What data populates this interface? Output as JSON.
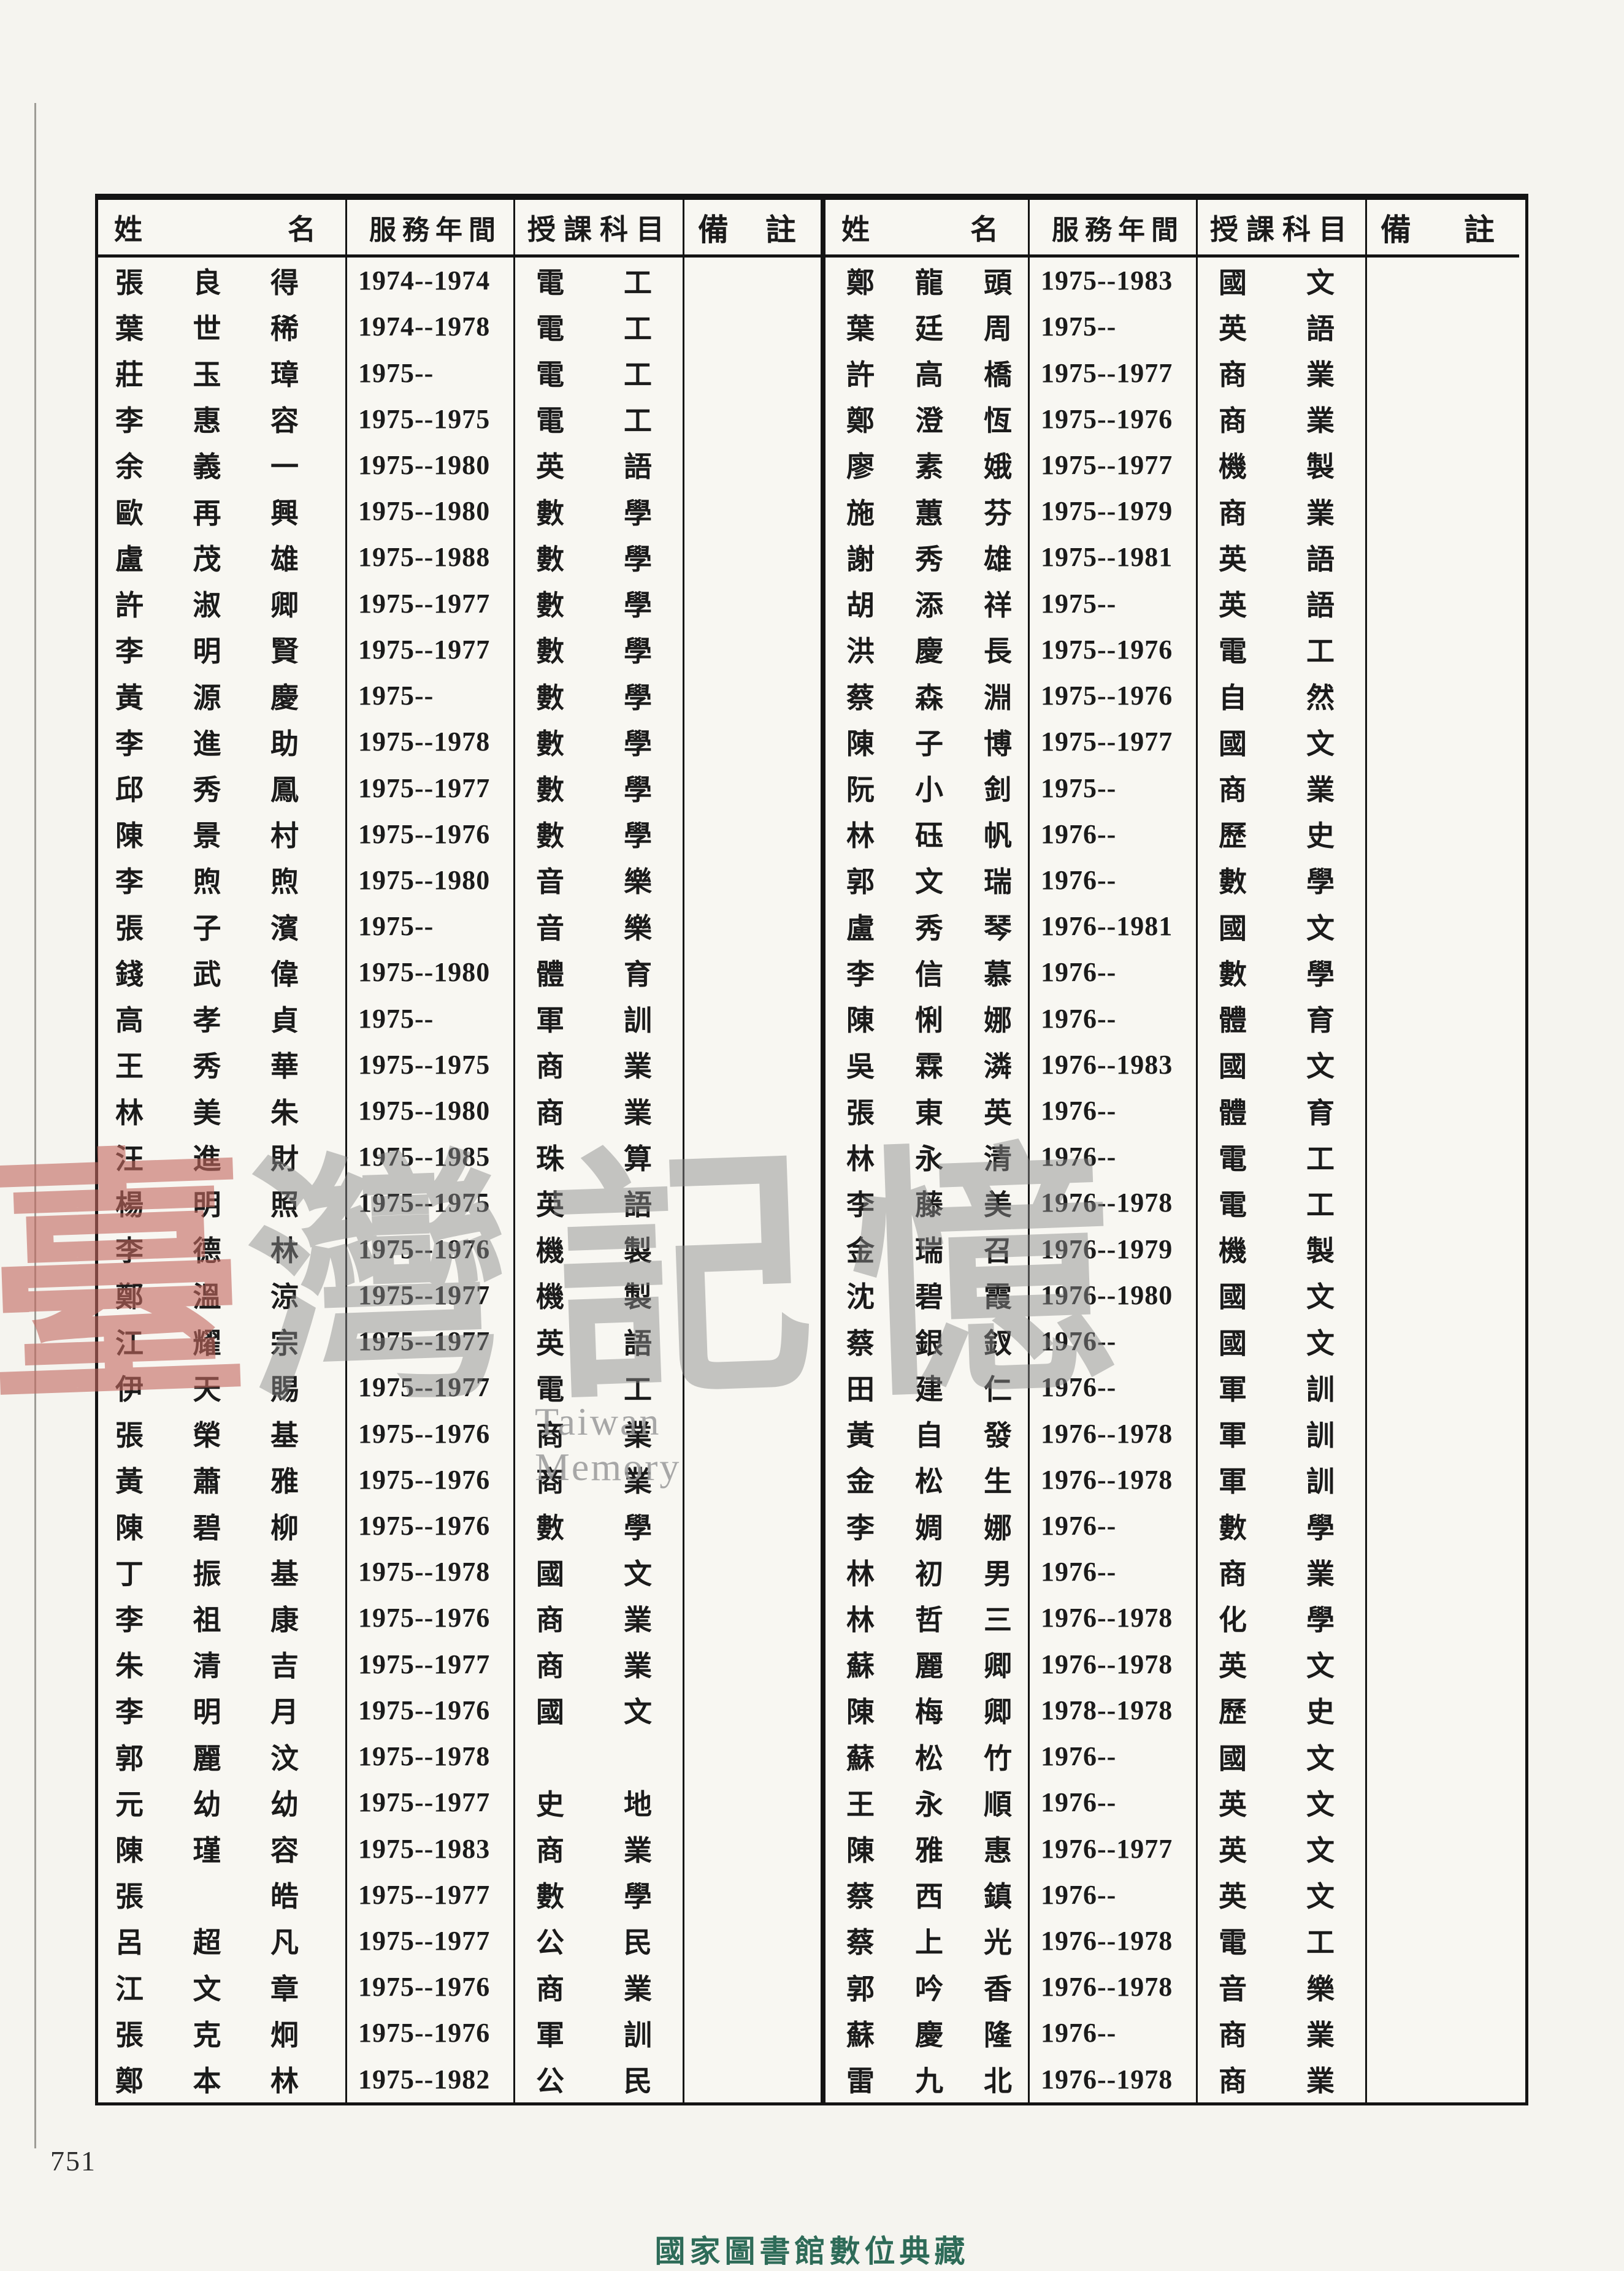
{
  "headers": {
    "name": "姓名",
    "years": "服務年間",
    "subject": "授課科目",
    "note": "備註"
  },
  "left_table": {
    "rows": [
      {
        "name": "張良得",
        "years": "1974--1974",
        "subject": "電工",
        "note": ""
      },
      {
        "name": "葉世稀",
        "years": "1974--1978",
        "subject": "電工",
        "note": ""
      },
      {
        "name": "莊玉璋",
        "years": "1975--",
        "subject": "電工",
        "note": ""
      },
      {
        "name": "李惠容",
        "years": "1975--1975",
        "subject": "電工",
        "note": ""
      },
      {
        "name": "余義一",
        "years": "1975--1980",
        "subject": "英語",
        "note": ""
      },
      {
        "name": "歐再興",
        "years": "1975--1980",
        "subject": "數學",
        "note": ""
      },
      {
        "name": "盧茂雄",
        "years": "1975--1988",
        "subject": "數學",
        "note": ""
      },
      {
        "name": "許淑卿",
        "years": "1975--1977",
        "subject": "數學",
        "note": ""
      },
      {
        "name": "李明賢",
        "years": "1975--1977",
        "subject": "數學",
        "note": ""
      },
      {
        "name": "黃源慶",
        "years": "1975--",
        "subject": "數學",
        "note": ""
      },
      {
        "name": "李進助",
        "years": "1975--1978",
        "subject": "數學",
        "note": ""
      },
      {
        "name": "邱秀鳳",
        "years": "1975--1977",
        "subject": "數學",
        "note": ""
      },
      {
        "name": "陳景村",
        "years": "1975--1976",
        "subject": "數學",
        "note": ""
      },
      {
        "name": "李煦煦",
        "years": "1975--1980",
        "subject": "音樂",
        "note": ""
      },
      {
        "name": "張子濱",
        "years": "1975--",
        "subject": "音樂",
        "note": ""
      },
      {
        "name": "錢武偉",
        "years": "1975--1980",
        "subject": "體育",
        "note": ""
      },
      {
        "name": "高孝貞",
        "years": "1975--",
        "subject": "軍訓",
        "note": ""
      },
      {
        "name": "王秀華",
        "years": "1975--1975",
        "subject": "商業",
        "note": ""
      },
      {
        "name": "林美朱",
        "years": "1975--1980",
        "subject": "商業",
        "note": ""
      },
      {
        "name": "汪進財",
        "years": "1975--1985",
        "subject": "珠算",
        "note": ""
      },
      {
        "name": "楊明照",
        "years": "1975--1975",
        "subject": "英語",
        "note": ""
      },
      {
        "name": "李德林",
        "years": "1975--1976",
        "subject": "機製",
        "note": ""
      },
      {
        "name": "鄭溫涼",
        "years": "1975--1977",
        "subject": "機製",
        "note": ""
      },
      {
        "name": "江耀宗",
        "years": "1975--1977",
        "subject": "英語",
        "note": ""
      },
      {
        "name": "伊天賜",
        "years": "1975--1977",
        "subject": "電工",
        "note": ""
      },
      {
        "name": "張榮基",
        "years": "1975--1976",
        "subject": "商業",
        "note": ""
      },
      {
        "name": "黃蕭雅",
        "years": "1975--1976",
        "subject": "商業",
        "note": ""
      },
      {
        "name": "陳碧柳",
        "years": "1975--1976",
        "subject": "數學",
        "note": ""
      },
      {
        "name": "丁振基",
        "years": "1975--1978",
        "subject": "國文",
        "note": ""
      },
      {
        "name": "李祖康",
        "years": "1975--1976",
        "subject": "商業",
        "note": ""
      },
      {
        "name": "朱清吉",
        "years": "1975--1977",
        "subject": "商業",
        "note": ""
      },
      {
        "name": "李明月",
        "years": "1975--1976",
        "subject": "國文",
        "note": ""
      },
      {
        "name": "郭麗汶",
        "years": "1975--1978",
        "subject": "",
        "note": ""
      },
      {
        "name": "元幼幼",
        "years": "1975--1977",
        "subject": "史地",
        "note": ""
      },
      {
        "name": "陳瑾容",
        "years": "1975--1983",
        "subject": "商業",
        "note": ""
      },
      {
        "name": "張皓",
        "years": "1975--1977",
        "subject": "數學",
        "note": ""
      },
      {
        "name": "呂超凡",
        "years": "1975--1977",
        "subject": "公民",
        "note": ""
      },
      {
        "name": "江文章",
        "years": "1975--1976",
        "subject": "商業",
        "note": ""
      },
      {
        "name": "張克炯",
        "years": "1975--1976",
        "subject": "軍訓",
        "note": ""
      },
      {
        "name": "鄭本林",
        "years": "1975--1982",
        "subject": "公民",
        "note": ""
      }
    ]
  },
  "right_table": {
    "rows": [
      {
        "name": "鄭龍頭",
        "years": "1975--1983",
        "subject": "國文",
        "note": ""
      },
      {
        "name": "葉廷周",
        "years": "1975--",
        "subject": "英語",
        "note": ""
      },
      {
        "name": "許高橋",
        "years": "1975--1977",
        "subject": "商業",
        "note": ""
      },
      {
        "name": "鄭澄恆",
        "years": "1975--1976",
        "subject": "商業",
        "note": ""
      },
      {
        "name": "廖素娥",
        "years": "1975--1977",
        "subject": "機製",
        "note": ""
      },
      {
        "name": "施蕙芬",
        "years": "1975--1979",
        "subject": "商業",
        "note": ""
      },
      {
        "name": "謝秀雄",
        "years": "1975--1981",
        "subject": "英語",
        "note": ""
      },
      {
        "name": "胡添祥",
        "years": "1975--",
        "subject": "英語",
        "note": ""
      },
      {
        "name": "洪慶長",
        "years": "1975--1976",
        "subject": "電工",
        "note": ""
      },
      {
        "name": "蔡森淵",
        "years": "1975--1976",
        "subject": "自然",
        "note": ""
      },
      {
        "name": "陳子博",
        "years": "1975--1977",
        "subject": "國文",
        "note": ""
      },
      {
        "name": "阮小釗",
        "years": "1975--",
        "subject": "商業",
        "note": ""
      },
      {
        "name": "林砡帆",
        "years": "1976--",
        "subject": "歷史",
        "note": ""
      },
      {
        "name": "郭文瑞",
        "years": "1976--",
        "subject": "數學",
        "note": ""
      },
      {
        "name": "盧秀琴",
        "years": "1976--1981",
        "subject": "國文",
        "note": ""
      },
      {
        "name": "李信慕",
        "years": "1976--",
        "subject": "數學",
        "note": ""
      },
      {
        "name": "陳悧娜",
        "years": "1976--",
        "subject": "體育",
        "note": ""
      },
      {
        "name": "吳霖潾",
        "years": "1976--1983",
        "subject": "國文",
        "note": ""
      },
      {
        "name": "張東英",
        "years": "1976--",
        "subject": "體育",
        "note": ""
      },
      {
        "name": "林永清",
        "years": "1976--",
        "subject": "電工",
        "note": ""
      },
      {
        "name": "李藤美",
        "years": "1976--1978",
        "subject": "電工",
        "note": ""
      },
      {
        "name": "金瑞召",
        "years": "1976--1979",
        "subject": "機製",
        "note": ""
      },
      {
        "name": "沈碧霞",
        "years": "1976--1980",
        "subject": "國文",
        "note": ""
      },
      {
        "name": "蔡銀釵",
        "years": "1976--",
        "subject": "國文",
        "note": ""
      },
      {
        "name": "田建仁",
        "years": "1976--",
        "subject": "軍訓",
        "note": ""
      },
      {
        "name": "黃自發",
        "years": "1976--1978",
        "subject": "軍訓",
        "note": ""
      },
      {
        "name": "金松生",
        "years": "1976--1978",
        "subject": "軍訓",
        "note": ""
      },
      {
        "name": "李婤娜",
        "years": "1976--",
        "subject": "數學",
        "note": ""
      },
      {
        "name": "林初男",
        "years": "1976--",
        "subject": "商業",
        "note": ""
      },
      {
        "name": "林哲三",
        "years": "1976--1978",
        "subject": "化學",
        "note": ""
      },
      {
        "name": "蘇麗卿",
        "years": "1976--1978",
        "subject": "英文",
        "note": ""
      },
      {
        "name": "陳梅卿",
        "years": "1978--1978",
        "subject": "歷史",
        "note": ""
      },
      {
        "name": "蘇松竹",
        "years": "1976--",
        "subject": "國文",
        "note": ""
      },
      {
        "name": "王永順",
        "years": "1976--",
        "subject": "英文",
        "note": ""
      },
      {
        "name": "陳雅惠",
        "years": "1976--1977",
        "subject": "英文",
        "note": ""
      },
      {
        "name": "蔡西鎮",
        "years": "1976--",
        "subject": "英文",
        "note": ""
      },
      {
        "name": "蔡上光",
        "years": "1976--1978",
        "subject": "電工",
        "note": ""
      },
      {
        "name": "郭吟香",
        "years": "1976--1978",
        "subject": "音樂",
        "note": ""
      },
      {
        "name": "蘇慶隆",
        "years": "1976--",
        "subject": "商業",
        "note": ""
      },
      {
        "name": "雷九北",
        "years": "1976--1978",
        "subject": "商業",
        "note": ""
      }
    ]
  },
  "watermark": {
    "char1": "臺",
    "char2": "灣",
    "char3": "記",
    "char4": "憶",
    "latin": "Taiwan Memory"
  },
  "page_number": "751",
  "footer": "國家圖書館數位典藏"
}
